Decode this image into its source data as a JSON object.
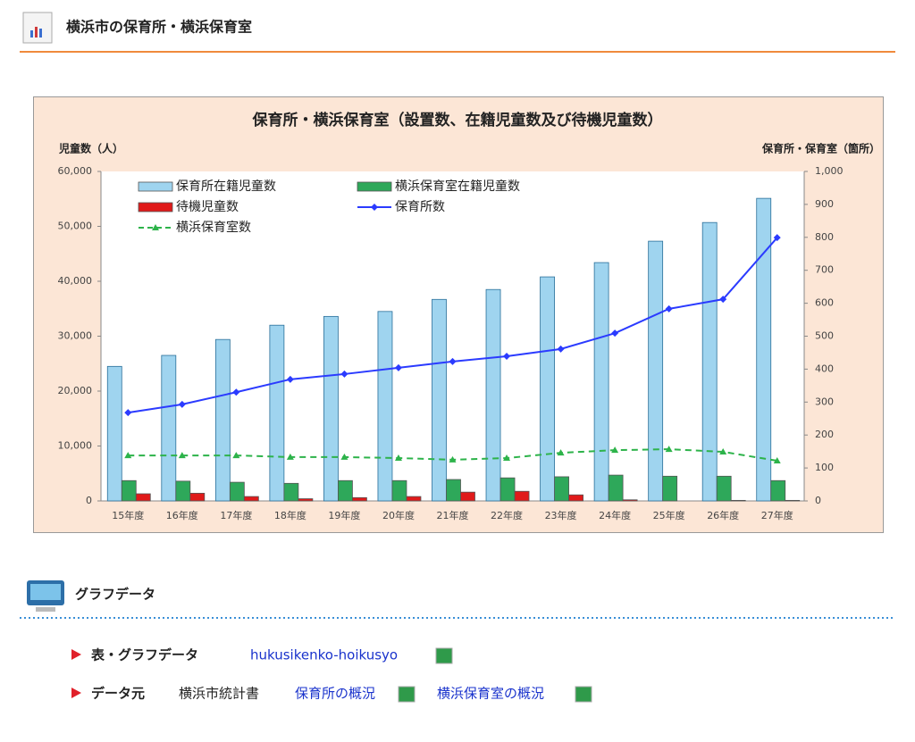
{
  "header": {
    "title": "横浜市の保育所・横浜保育室"
  },
  "chart_data": {
    "type": "bar",
    "title": "保育所・横浜保育室（設置数、在籍児童数及び待機児童数）",
    "y_label": "児童数（人）",
    "y2_label": "保育所・保育室（箇所）",
    "categories": [
      "15年度",
      "16年度",
      "17年度",
      "18年度",
      "19年度",
      "20年度",
      "21年度",
      "22年度",
      "23年度",
      "24年度",
      "25年度",
      "26年度",
      "27年度"
    ],
    "series": [
      {
        "name": "保育所在籍児童数",
        "type": "bar",
        "color": "#9fd4ef",
        "values": [
          24500,
          26500,
          29400,
          32000,
          33600,
          34500,
          36700,
          38500,
          40800,
          43400,
          47300,
          50700,
          55100
        ]
      },
      {
        "name": "横浜保育室在籍児童数",
        "type": "bar",
        "color": "#2ea85a",
        "values": [
          3700,
          3600,
          3400,
          3200,
          3700,
          3700,
          3900,
          4200,
          4400,
          4700,
          4500,
          4500,
          3700
        ]
      },
      {
        "name": "待機児童数",
        "type": "bar",
        "color": "#e01a1a",
        "values": [
          1300,
          1400,
          800,
          400,
          600,
          800,
          1600,
          1750,
          1100,
          200,
          0,
          100,
          100
        ]
      },
      {
        "name": "保育所数",
        "type": "line",
        "axis": "y2",
        "color": "#2b3bff",
        "marker": "diamond",
        "values": [
          268,
          293,
          330,
          369,
          385,
          404,
          423,
          439,
          461,
          509,
          583,
          612,
          799
        ]
      },
      {
        "name": "横浜保育室数",
        "type": "line",
        "axis": "y2",
        "color": "#2db34a",
        "marker": "triangle",
        "dashed": true,
        "values": [
          138,
          138,
          138,
          133,
          133,
          130,
          125,
          130,
          146,
          154,
          157,
          149,
          122
        ]
      }
    ],
    "ylim": [
      0,
      60000
    ],
    "yticks": [
      0,
      {
        "value": 10000,
        "label": "10,000"
      },
      {
        "value": 20000,
        "label": "20,000"
      },
      {
        "value": 30000,
        "label": "30,000"
      },
      {
        "value": 40000,
        "label": "40,000"
      },
      {
        "value": 50000,
        "label": "50,000"
      },
      {
        "value": 60000,
        "label": "60,000"
      }
    ],
    "y2lim": [
      0,
      1000
    ],
    "y2ticks": [
      0,
      100,
      200,
      300,
      400,
      500,
      600,
      700,
      800,
      900,
      {
        "value": 1000,
        "label": "1,000"
      }
    ]
  },
  "section": {
    "title": "グラフデータ"
  },
  "list": [
    {
      "label": "表・グラフデータ",
      "links": [
        "hukusikenko-hoikusyo"
      ]
    },
    {
      "label": "データ元",
      "source": "横浜市統計書",
      "links": [
        "保育所の概況",
        "横浜保育室の概況"
      ]
    }
  ]
}
